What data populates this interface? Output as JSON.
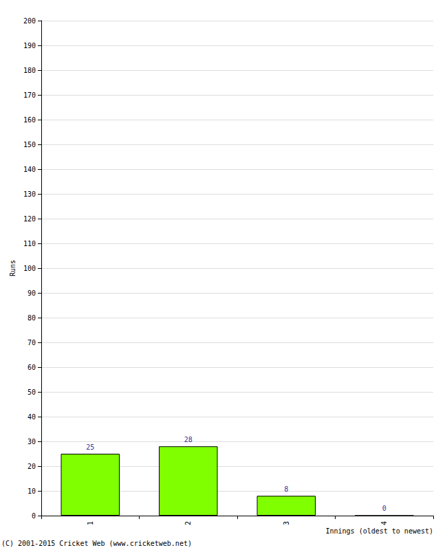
{
  "chart_data": {
    "type": "bar",
    "categories": [
      "1",
      "2",
      "3",
      "4"
    ],
    "values": [
      25,
      28,
      8,
      0
    ],
    "color": "#80ff00",
    "x_label": "Innings (oldest to newest)",
    "y_label": "Runs",
    "annotations": [
      "(C) 2001-2015 Cricket Web (www.cricketweb.net)"
    ],
    "ylim": [
      0,
      200
    ],
    "yticks": [
      0,
      10,
      20,
      30,
      40,
      50,
      60,
      70,
      80,
      90,
      100,
      110,
      120,
      130,
      140,
      150,
      160,
      170,
      180,
      190,
      200
    ],
    "grid": true,
    "data_labels": true
  }
}
